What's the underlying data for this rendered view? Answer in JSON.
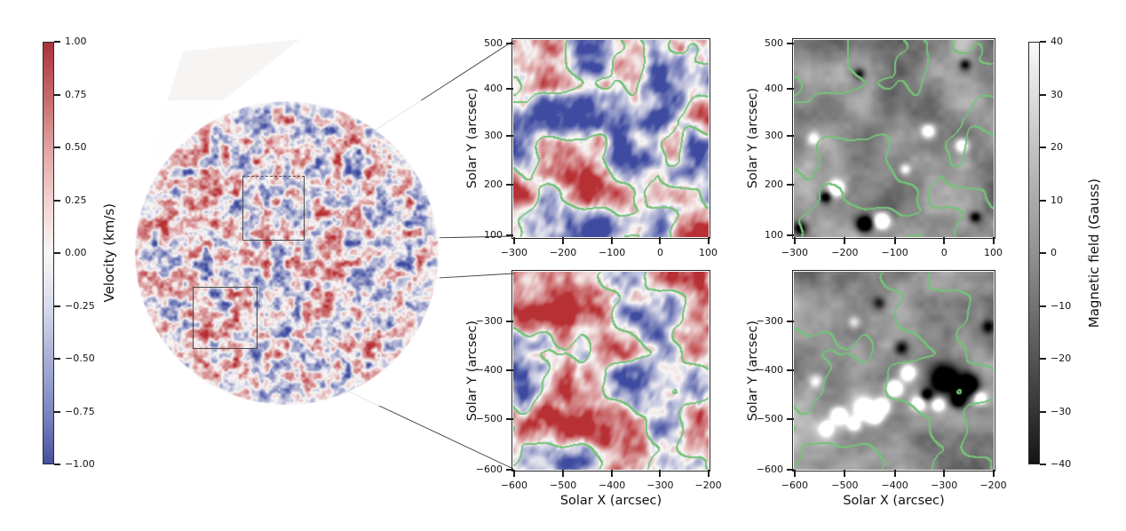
{
  "chart_data": {
    "type": "heatmap",
    "title": "",
    "description": "Solar physics figure: full-disk Doppler velocity map (left) with two boxed regions, zoomed velocity cutouts (middle column) and co-spatial magnetograms (right column); green contours of the velocity pattern are overlaid on all four cutout panels.",
    "layout": {
      "grid": "full-disk + 2x2 cutout panels",
      "legend_position": "none",
      "grid_lines": false
    },
    "contour_color": "#7cc47e",
    "velocity_palette": {
      "positive": "#b73034",
      "zero": "#f8f6f5",
      "negative": "#3e4ba2"
    },
    "colorbars": [
      {
        "id": "velocity",
        "label": "Velocity (km/s)",
        "side": "left",
        "orientation": "vertical",
        "range": [
          -1.0,
          1.0
        ],
        "ticks": [
          1.0,
          0.75,
          0.5,
          0.25,
          0.0,
          -0.25,
          -0.5,
          -0.75,
          -1.0
        ],
        "tick_labels": [
          "1.00",
          "0.75",
          "0.50",
          "0.25",
          "0.00",
          "−0.25",
          "−0.50",
          "−0.75",
          "−1.00"
        ],
        "colormap": "red-white-blue"
      },
      {
        "id": "magnetic_field",
        "label": "Magnetic field (Gauss)",
        "side": "right",
        "orientation": "vertical",
        "range": [
          -40,
          40
        ],
        "ticks": [
          40,
          30,
          20,
          10,
          0,
          -10,
          -20,
          -30,
          -40
        ],
        "tick_labels": [
          "40",
          "30",
          "20",
          "10",
          "0",
          "−10",
          "−20",
          "−30",
          "−40"
        ],
        "colormap": "white-gray-black"
      }
    ],
    "full_disk": {
      "kind": "solar-disk-velocity-map",
      "colormap": "red-white-blue",
      "zoom_boxes": [
        {
          "xlim": [
            -300,
            100
          ],
          "ylim": [
            100,
            500
          ]
        },
        {
          "xlim": [
            -600,
            -200
          ],
          "ylim": [
            -600,
            -200
          ]
        }
      ]
    },
    "panels": [
      {
        "id": "velocity_cutout_top",
        "quantity": "velocity",
        "xlim": [
          -300,
          100
        ],
        "ylim": [
          100,
          500
        ],
        "x_tick_labels": [
          "−300",
          "−200",
          "−100",
          "0",
          "100"
        ],
        "y_tick_labels": [
          "500",
          "400",
          "300",
          "200",
          "100"
        ],
        "xlabel": "",
        "ylabel": "Solar Y (arcsec)",
        "overlay": "green velocity contours"
      },
      {
        "id": "magnetogram_top",
        "quantity": "magnetic field",
        "xlim": [
          -300,
          100
        ],
        "ylim": [
          100,
          500
        ],
        "x_tick_labels": [
          "−300",
          "−200",
          "−100",
          "0",
          "100"
        ],
        "y_tick_labels": [
          "500",
          "400",
          "300",
          "200",
          "100"
        ],
        "xlabel": "",
        "ylabel": "Solar Y (arcsec)",
        "overlay": "green velocity contours",
        "features": [
          {
            "x": -215,
            "y": 200,
            "gauss": 38,
            "size": 10
          },
          {
            "x": -237,
            "y": 182,
            "gauss": -26,
            "size": 8
          },
          {
            "x": -124,
            "y": 134,
            "gauss": 40,
            "size": 11
          },
          {
            "x": -159,
            "y": 127,
            "gauss": -38,
            "size": 11
          },
          {
            "x": -32,
            "y": 316,
            "gauss": 27,
            "size": 9
          },
          {
            "x": 36,
            "y": 287,
            "gauss": 30,
            "size": 10
          },
          {
            "x": 42,
            "y": 451,
            "gauss": -22,
            "size": 8
          },
          {
            "x": -170,
            "y": 432,
            "gauss": -18,
            "size": 8
          },
          {
            "x": -262,
            "y": 300,
            "gauss": 18,
            "size": 9
          },
          {
            "x": -78,
            "y": 238,
            "gauss": 20,
            "size": 8
          },
          {
            "x": 62,
            "y": 142,
            "gauss": -20,
            "size": 8
          },
          {
            "x": -288,
            "y": 118,
            "gauss": -24,
            "size": 9
          }
        ]
      },
      {
        "id": "velocity_cutout_bottom",
        "quantity": "velocity",
        "xlim": [
          -600,
          -200
        ],
        "ylim": [
          -600,
          -200
        ],
        "x_tick_labels": [
          "−600",
          "−500",
          "−400",
          "−300",
          "−200"
        ],
        "y_tick_labels": [
          "−300",
          "−400",
          "−500",
          "−600"
        ],
        "xlabel": "Solar X (arcsec)",
        "ylabel": "Solar Y (arcsec)",
        "overlay": "green velocity contours"
      },
      {
        "id": "magnetogram_bottom",
        "quantity": "magnetic field",
        "xlim": [
          -600,
          -200
        ],
        "ylim": [
          -600,
          -200
        ],
        "x_tick_labels": [
          "−600",
          "−500",
          "−400",
          "−300",
          "−200"
        ],
        "y_tick_labels": [
          "−300",
          "−400",
          "−500",
          "−600"
        ],
        "xlabel": "Solar X (arcsec)",
        "ylabel": "Solar Y (arcsec)",
        "overlay": "green velocity contours",
        "features": [
          {
            "x": -300,
            "y": -418,
            "gauss": -40,
            "size": 20
          },
          {
            "x": -252,
            "y": -428,
            "gauss": -40,
            "size": 16
          },
          {
            "x": -272,
            "y": -458,
            "gauss": -34,
            "size": 11
          },
          {
            "x": -336,
            "y": -448,
            "gauss": -28,
            "size": 9
          },
          {
            "x": -460,
            "y": -476,
            "gauss": 40,
            "size": 13
          },
          {
            "x": -438,
            "y": -490,
            "gauss": 38,
            "size": 11
          },
          {
            "x": -424,
            "y": -470,
            "gauss": 36,
            "size": 10
          },
          {
            "x": -399,
            "y": -435,
            "gauss": 40,
            "size": 11
          },
          {
            "x": -372,
            "y": -404,
            "gauss": 34,
            "size": 11
          },
          {
            "x": -510,
            "y": -490,
            "gauss": 36,
            "size": 11
          },
          {
            "x": -536,
            "y": -516,
            "gauss": 30,
            "size": 10
          },
          {
            "x": -480,
            "y": -508,
            "gauss": 28,
            "size": 10
          },
          {
            "x": -228,
            "y": -455,
            "gauss": 26,
            "size": 9
          },
          {
            "x": -352,
            "y": -466,
            "gauss": 30,
            "size": 10
          },
          {
            "x": -312,
            "y": -468,
            "gauss": 28,
            "size": 9
          },
          {
            "x": -385,
            "y": -352,
            "gauss": -20,
            "size": 10
          },
          {
            "x": -430,
            "y": -262,
            "gauss": -16,
            "size": 9
          },
          {
            "x": -212,
            "y": -310,
            "gauss": -16,
            "size": 9
          },
          {
            "x": -556,
            "y": -420,
            "gauss": 16,
            "size": 10
          },
          {
            "x": -480,
            "y": -300,
            "gauss": 14,
            "size": 9
          }
        ]
      }
    ]
  }
}
